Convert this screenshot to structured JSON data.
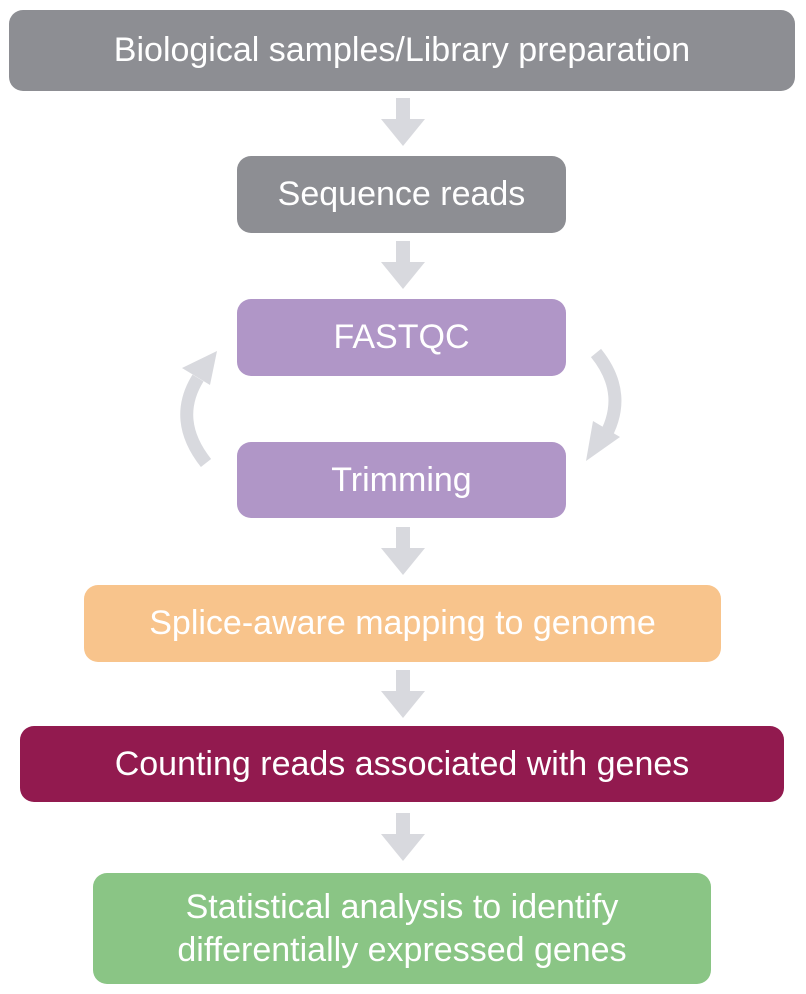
{
  "diagram": {
    "steps": [
      {
        "label": "Biological samples/Library preparation",
        "color": "#8d8e93"
      },
      {
        "label": "Sequence reads",
        "color": "#8d8e93"
      },
      {
        "label": "FASTQC",
        "color": "#b096c7"
      },
      {
        "label": "Trimming",
        "color": "#b096c7"
      },
      {
        "label": "Splice-aware mapping to genome",
        "color": "#f8c48c"
      },
      {
        "label": "Counting reads associated with genes",
        "color": "#921a4f"
      },
      {
        "label": "Statistical analysis to identify differentially expressed genes",
        "color": "#8ac585"
      }
    ],
    "arrow_color": "#d8d9de"
  }
}
